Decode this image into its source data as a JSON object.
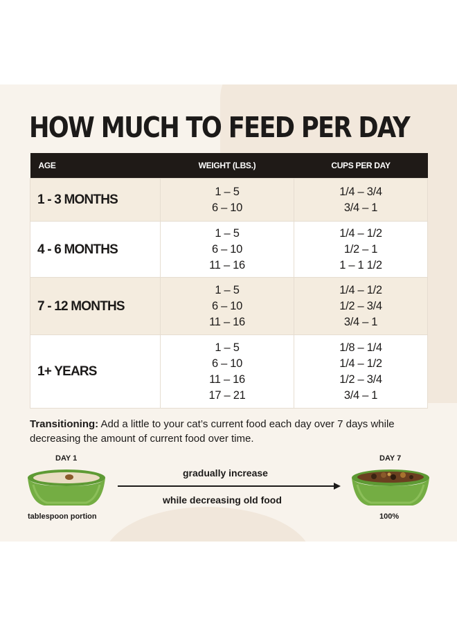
{
  "title": "HOW MUCH TO FEED PER DAY",
  "table": {
    "headers": [
      "AGE",
      "WEIGHT (LBS.)",
      "CUPS PER DAY"
    ],
    "rows": [
      {
        "age": "1 - 3 MONTHS",
        "weights": [
          "1 – 5",
          "6 – 10"
        ],
        "cups": [
          "1/4 – 3/4",
          "3/4 – 1"
        ]
      },
      {
        "age": "4 - 6 MONTHS",
        "weights": [
          "1 – 5",
          "6 – 10",
          "11 – 16"
        ],
        "cups": [
          "1/4 – 1/2",
          "1/2 – 1",
          "1 – 1 1/2"
        ]
      },
      {
        "age": "7 - 12 MONTHS",
        "weights": [
          "1 – 5",
          "6 – 10",
          "11 – 16"
        ],
        "cups": [
          "1/4 – 1/2",
          "1/2 – 3/4",
          "3/4 – 1"
        ]
      },
      {
        "age": "1+ YEARS",
        "weights": [
          "1 – 5",
          "6 – 10",
          "11 – 16",
          "17 – 21"
        ],
        "cups": [
          "1/8 – 1/4",
          "1/4 – 1/2",
          "1/2 – 3/4",
          "3/4 – 1"
        ]
      }
    ]
  },
  "transition": {
    "label": "Transitioning:",
    "text": "Add a little to your cat’s current food each day over 7 days while decreasing the amount of current food over time."
  },
  "diagram": {
    "start_label": "DAY 1",
    "start_caption": "tablespoon portion",
    "end_label": "DAY 7",
    "end_caption": "100%",
    "arrow_top": "gradually increase",
    "arrow_bottom": "while decreasing old food"
  },
  "colors": {
    "header_bg": "#1f1a17",
    "row_tan": "#f4ecdf",
    "row_white": "#ffffff",
    "panel_bg": "#f8f3ec",
    "bowl_green": "#6fa640"
  },
  "icons": [
    "food-bowl-icon",
    "arrow-right-icon"
  ]
}
